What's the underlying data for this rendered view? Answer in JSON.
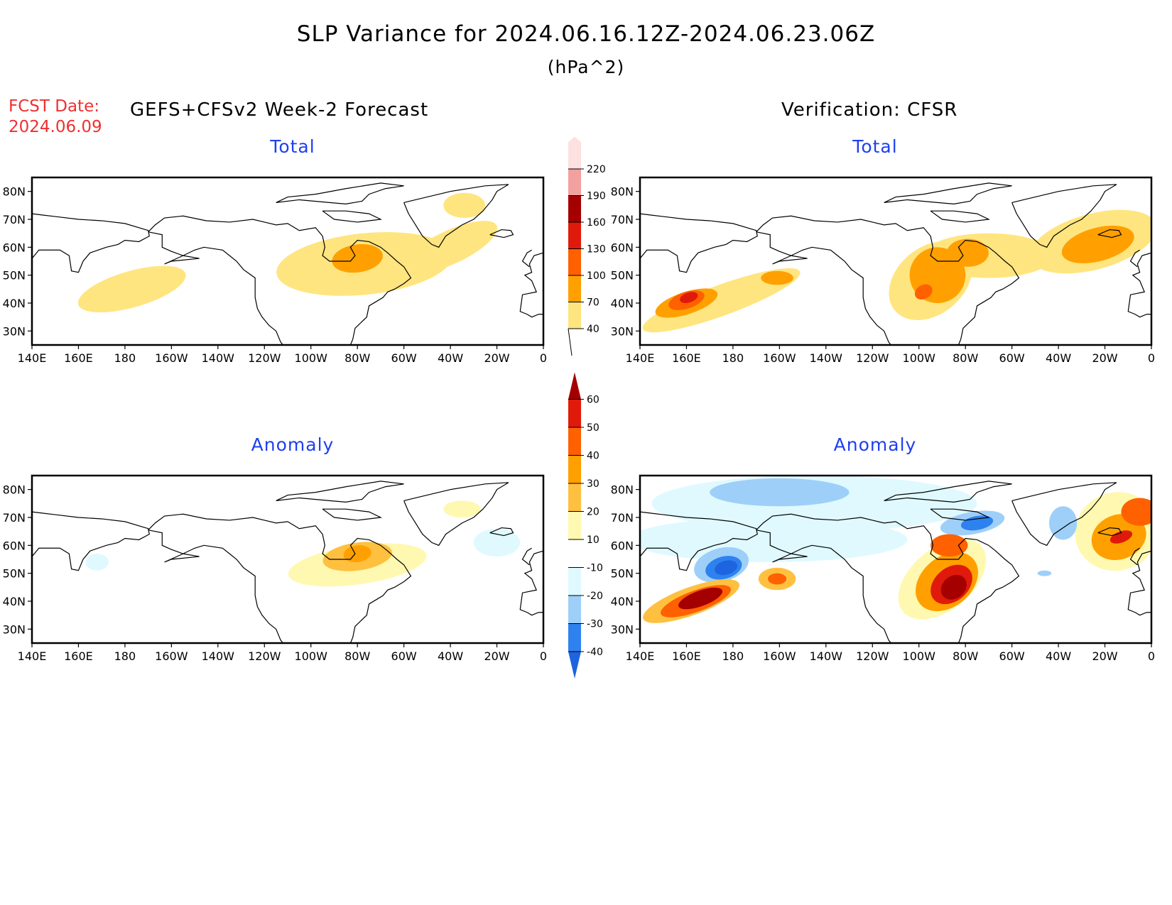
{
  "header": {
    "title": "SLP Variance for 2024.06.16.12Z-2024.06.23.06Z",
    "units": "(hPa^2)",
    "fcst_date_label": "FCST Date:",
    "fcst_date": "2024.06.09",
    "left_title": "GEFS+CFSv2 Week-2 Forecast",
    "right_title": "Verification: CFSR"
  },
  "panels": {
    "forecast_total": {
      "subtitle": "Total"
    },
    "verification_total": {
      "subtitle": "Total"
    },
    "forecast_anomaly": {
      "subtitle": "Anomaly"
    },
    "verification_anomaly": {
      "subtitle": "Anomaly"
    }
  },
  "chart_data": [
    {
      "type": "heatmap",
      "title": "Total (GEFS+CFSv2 Week-2 Forecast)",
      "xlabel": "",
      "ylabel": "",
      "x_ticks": [
        "140E",
        "160E",
        "180",
        "160W",
        "140W",
        "120W",
        "100W",
        "80W",
        "60W",
        "40W",
        "20W",
        "0"
      ],
      "y_ticks": [
        "30N",
        "40N",
        "50N",
        "60N",
        "70N",
        "80N"
      ],
      "xlim": [
        140,
        360
      ],
      "ylim": [
        25,
        85
      ],
      "features": [
        {
          "region": "North Pacific",
          "level": "40-70"
        },
        {
          "region": "Central Canada / Hudson Bay",
          "level": "40-70"
        },
        {
          "region": "Hudson Bay core",
          "level": "70-100"
        },
        {
          "region": "Greenland",
          "level": "40-70"
        }
      ]
    },
    {
      "type": "heatmap",
      "title": "Total (Verification: CFSR)",
      "x_ticks": [
        "140E",
        "160E",
        "180",
        "160W",
        "140W",
        "120W",
        "100W",
        "80W",
        "60W",
        "40W",
        "20W",
        "0"
      ],
      "y_ticks": [
        "30N",
        "40N",
        "50N",
        "60N",
        "70N",
        "80N"
      ],
      "xlim": [
        140,
        360
      ],
      "ylim": [
        25,
        85
      ],
      "features": [
        {
          "region": "NW Pacific",
          "level": "130-160"
        },
        {
          "region": "Central Pacific",
          "level": "70-100"
        },
        {
          "region": "Central US / Canada",
          "level": "100-130"
        },
        {
          "region": "North Atlantic",
          "level": "70-100"
        }
      ]
    },
    {
      "type": "heatmap",
      "title": "Anomaly (GEFS+CFSv2 Week-2 Forecast)",
      "x_ticks": [
        "140E",
        "160E",
        "180",
        "160W",
        "140W",
        "120W",
        "100W",
        "80W",
        "60W",
        "40W",
        "20W",
        "0"
      ],
      "y_ticks": [
        "30N",
        "40N",
        "50N",
        "60N",
        "70N",
        "80N"
      ],
      "xlim": [
        140,
        360
      ],
      "ylim": [
        25,
        85
      ],
      "features": [
        {
          "region": "Hudson Bay",
          "level": "30-40"
        },
        {
          "region": "Central Canada",
          "level": "10-20"
        },
        {
          "region": "North Atlantic",
          "level": "-20--10"
        }
      ]
    },
    {
      "type": "heatmap",
      "title": "Anomaly (Verification: CFSR)",
      "x_ticks": [
        "140E",
        "160E",
        "180",
        "160W",
        "140W",
        "120W",
        "100W",
        "80W",
        "60W",
        "40W",
        "20W",
        "0"
      ],
      "y_ticks": [
        "30N",
        "40N",
        "50N",
        "60N",
        "70N",
        "80N"
      ],
      "xlim": [
        140,
        360
      ],
      "ylim": [
        25,
        85
      ],
      "features": [
        {
          "region": "NW Pacific",
          "level": ">60"
        },
        {
          "region": "Bering Sea",
          "level": "-40--30"
        },
        {
          "region": "Great Plains",
          "level": ">60"
        },
        {
          "region": "Baffin Island",
          "level": "-40--30"
        },
        {
          "region": "North Atlantic",
          "level": "50-60"
        }
      ]
    }
  ],
  "colorbars": {
    "total": {
      "levels": [
        "40",
        "70",
        "100",
        "130",
        "160",
        "190",
        "220"
      ],
      "colors": [
        "#ffe57f",
        "#ffa000",
        "#ff6000",
        "#e01a0a",
        "#a50000",
        "#f2a0a0",
        "#fde0e0"
      ]
    },
    "anomaly": {
      "levels": [
        "-40",
        "-30",
        "-20",
        "-10",
        "10",
        "20",
        "30",
        "40",
        "50",
        "60"
      ],
      "colors": [
        "#1e64e0",
        "#2e82ef",
        "#9ecff8",
        "#dff9ff",
        "#ffffff",
        "#fff8b0",
        "#ffc040",
        "#ffa000",
        "#ff6000",
        "#e01a0a",
        "#a50000"
      ]
    }
  }
}
